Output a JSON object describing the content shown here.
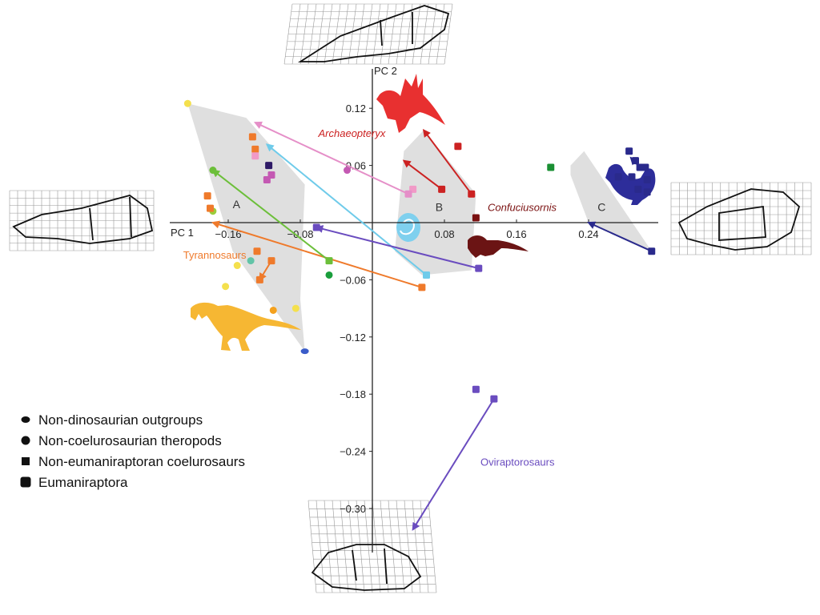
{
  "chart_data": {
    "type": "scatter",
    "xlabel": "PC 1",
    "ylabel": "PC 2",
    "x_ticks": [
      -0.16,
      -0.08,
      0.08,
      0.16,
      0.24
    ],
    "y_ticks": [
      0.12,
      0.06,
      -0.06,
      -0.12,
      -0.18,
      -0.24,
      -0.3
    ],
    "xlim": [
      -0.23,
      0.32
    ],
    "ylim": [
      -0.34,
      0.165
    ],
    "tick_labels": {
      "x": [
        "−0.16",
        "−0.08",
        "0.08",
        "0.16",
        "0.24"
      ],
      "y": [
        "0.12",
        "0.06",
        "−0.06",
        "−0.12",
        "−0.18",
        "−0.24",
        "−0.30"
      ]
    },
    "regions": [
      {
        "name": "A",
        "label_at": [
          -0.155,
          0.015
        ],
        "hull": [
          [
            -0.205,
            0.125
          ],
          [
            -0.14,
            0.11
          ],
          [
            -0.075,
            0.04
          ],
          [
            -0.08,
            -0.08
          ],
          [
            -0.075,
            -0.135
          ],
          [
            -0.155,
            -0.03
          ],
          [
            -0.205,
            0.125
          ]
        ]
      },
      {
        "name": "B",
        "label_at": [
          0.07,
          0.012
        ],
        "hull": [
          [
            0.035,
            0.075
          ],
          [
            0.057,
            0.097
          ],
          [
            0.115,
            0.03
          ],
          [
            0.11,
            -0.05
          ],
          [
            0.055,
            -0.055
          ],
          [
            0.025,
            -0.03
          ],
          [
            0.035,
            0.075
          ]
        ]
      },
      {
        "name": "C",
        "label_at": [
          0.25,
          0.012
        ],
        "hull": [
          [
            0.22,
            0.06
          ],
          [
            0.235,
            0.075
          ],
          [
            0.31,
            -0.03
          ],
          [
            0.24,
            0.0
          ],
          [
            0.22,
            0.05
          ]
        ]
      }
    ],
    "points": [
      {
        "x": -0.205,
        "y": 0.125,
        "color": "#f4e04d",
        "shape": "circle"
      },
      {
        "x": -0.177,
        "y": 0.055,
        "color": "#6cbf3a",
        "shape": "circle"
      },
      {
        "x": -0.177,
        "y": 0.012,
        "color": "#9acd3c",
        "shape": "circle"
      },
      {
        "x": -0.15,
        "y": -0.045,
        "color": "#f4e04d",
        "shape": "circle"
      },
      {
        "x": -0.163,
        "y": -0.067,
        "color": "#f4e04d",
        "shape": "circle"
      },
      {
        "x": -0.135,
        "y": -0.04,
        "color": "#62c4a8",
        "shape": "circle"
      },
      {
        "x": -0.11,
        "y": -0.092,
        "color": "#f4a11e",
        "shape": "circle"
      },
      {
        "x": -0.085,
        "y": -0.09,
        "color": "#f4e04d",
        "shape": "circle"
      },
      {
        "x": -0.048,
        "y": -0.055,
        "color": "#1a9e3c",
        "shape": "circle"
      },
      {
        "x": -0.028,
        "y": 0.055,
        "color": "#c459b3",
        "shape": "circle"
      },
      {
        "x": -0.075,
        "y": -0.135,
        "color": "#3a5cc9",
        "shape": "ellipse"
      },
      {
        "x": -0.133,
        "y": 0.09,
        "color": "#ef7a2b",
        "shape": "square"
      },
      {
        "x": -0.13,
        "y": 0.077,
        "color": "#ef7a2b",
        "shape": "square"
      },
      {
        "x": -0.13,
        "y": 0.07,
        "color": "#f19ac7",
        "shape": "square"
      },
      {
        "x": -0.115,
        "y": 0.06,
        "color": "#2e1a66",
        "shape": "square"
      },
      {
        "x": -0.112,
        "y": 0.05,
        "color": "#c459b3",
        "shape": "square"
      },
      {
        "x": -0.117,
        "y": 0.045,
        "color": "#c459b3",
        "shape": "square"
      },
      {
        "x": -0.183,
        "y": 0.028,
        "color": "#ef7a2b",
        "shape": "square"
      },
      {
        "x": -0.18,
        "y": 0.015,
        "color": "#ef7a2b",
        "shape": "square"
      },
      {
        "x": -0.128,
        "y": -0.03,
        "color": "#ef7a2b",
        "shape": "square"
      },
      {
        "x": -0.125,
        "y": -0.06,
        "color": "#ef7a2b",
        "shape": "square"
      },
      {
        "x": -0.062,
        "y": -0.005,
        "color": "#6a4cbf",
        "shape": "square"
      },
      {
        "x": 0.198,
        "y": 0.058,
        "color": "#1a8f33",
        "shape": "square"
      },
      {
        "x": 0.115,
        "y": -0.175,
        "color": "#6a4cbf",
        "shape": "square"
      },
      {
        "x": 0.095,
        "y": 0.08,
        "color": "#cc2222",
        "shape": "square"
      },
      {
        "x": 0.115,
        "y": 0.005,
        "color": "#7a1010",
        "shape": "square"
      },
      {
        "x": 0.045,
        "y": 0.035,
        "color": "#f19ac7",
        "shape": "square"
      },
      {
        "x": 0.285,
        "y": 0.075,
        "color": "#2a2a8c",
        "shape": "square"
      },
      {
        "x": 0.292,
        "y": 0.065,
        "color": "#2a2a8c",
        "shape": "square"
      },
      {
        "x": 0.303,
        "y": 0.058,
        "color": "#2a2a8c",
        "shape": "square"
      },
      {
        "x": 0.273,
        "y": 0.048,
        "color": "#2a2a8c",
        "shape": "square"
      },
      {
        "x": 0.288,
        "y": 0.048,
        "color": "#2a2a8c",
        "shape": "square"
      },
      {
        "x": 0.305,
        "y": 0.045,
        "color": "#2a2a8c",
        "shape": "square"
      },
      {
        "x": 0.295,
        "y": 0.035,
        "color": "#2a2a8c",
        "shape": "square"
      },
      {
        "x": 0.305,
        "y": 0.032,
        "color": "#2a2a8c",
        "shape": "square"
      }
    ],
    "arrows": [
      {
        "from": [
          0.04,
          0.03
        ],
        "to": [
          -0.13,
          0.105
        ],
        "color": "#e58fc8"
      },
      {
        "from": [
          0.06,
          -0.055
        ],
        "to": [
          -0.117,
          0.082
        ],
        "color": "#6fcbea"
      },
      {
        "from": [
          0.055,
          -0.068
        ],
        "to": [
          -0.177,
          0.0
        ],
        "color": "#ef7a2b"
      },
      {
        "from": [
          -0.048,
          -0.04
        ],
        "to": [
          -0.177,
          0.055
        ],
        "color": "#6cbf3a"
      },
      {
        "from": [
          0.118,
          -0.048
        ],
        "to": [
          -0.062,
          -0.005
        ],
        "color": "#6a4cbf"
      },
      {
        "from": [
          0.11,
          0.03
        ],
        "to": [
          0.057,
          0.097
        ],
        "color": "#cc2222"
      },
      {
        "from": [
          0.077,
          0.035
        ],
        "to": [
          0.035,
          0.065
        ],
        "color": "#cc2222"
      },
      {
        "from": [
          0.31,
          -0.03
        ],
        "to": [
          0.24,
          0.0
        ],
        "color": "#2a2a8c"
      },
      {
        "from": [
          -0.112,
          -0.04
        ],
        "to": [
          -0.125,
          -0.06
        ],
        "color": "#ef7a2b"
      },
      {
        "from": [
          0.135,
          -0.185
        ],
        "to": [
          0.045,
          -0.322
        ],
        "color": "#6a4cbf"
      },
      {
        "from": [
          0.297,
          0.058
        ],
        "to": [
          0.287,
          0.068
        ],
        "color": "#2a2a8c"
      }
    ],
    "annotations": [
      {
        "text": "Archaeopteryx",
        "at": [
          -0.06,
          0.09
        ],
        "color": "#cc2222",
        "italic": true
      },
      {
        "text": "Confuciusornis",
        "at": [
          0.128,
          0.012
        ],
        "color": "#7a1010",
        "italic": true
      },
      {
        "text": "Tyrannosaurs",
        "at": [
          -0.21,
          -0.038
        ],
        "color": "#ef7a2b",
        "italic": false
      },
      {
        "text": "Oviraptorosaurs",
        "at": [
          0.12,
          -0.255
        ],
        "color": "#6a4cbf",
        "italic": false
      }
    ],
    "legend": {
      "placement": "bottom-left",
      "entries": [
        {
          "label": "Non-dinosaurian outgroups",
          "marker": "ellipse"
        },
        {
          "label": "Non-coelurosaurian theropods",
          "marker": "circle"
        },
        {
          "label": "Non-eumaniraptoran coelurosaurs",
          "marker": "square"
        },
        {
          "label": "Eumaniraptora",
          "marker": "rounded-square"
        }
      ]
    },
    "colors": {
      "hull_fill": "#dcdcdc",
      "axis": "#222222",
      "mesh": "#999999",
      "outline": "#111111"
    },
    "icons": [
      "tyrannosaur-silhouette",
      "archaeopteryx-silhouette",
      "chicken-silhouette",
      "bird-silhouette",
      "embryo-silhouette",
      "skull-grid-top",
      "skull-grid-left",
      "skull-grid-right",
      "skull-grid-bottom"
    ]
  }
}
